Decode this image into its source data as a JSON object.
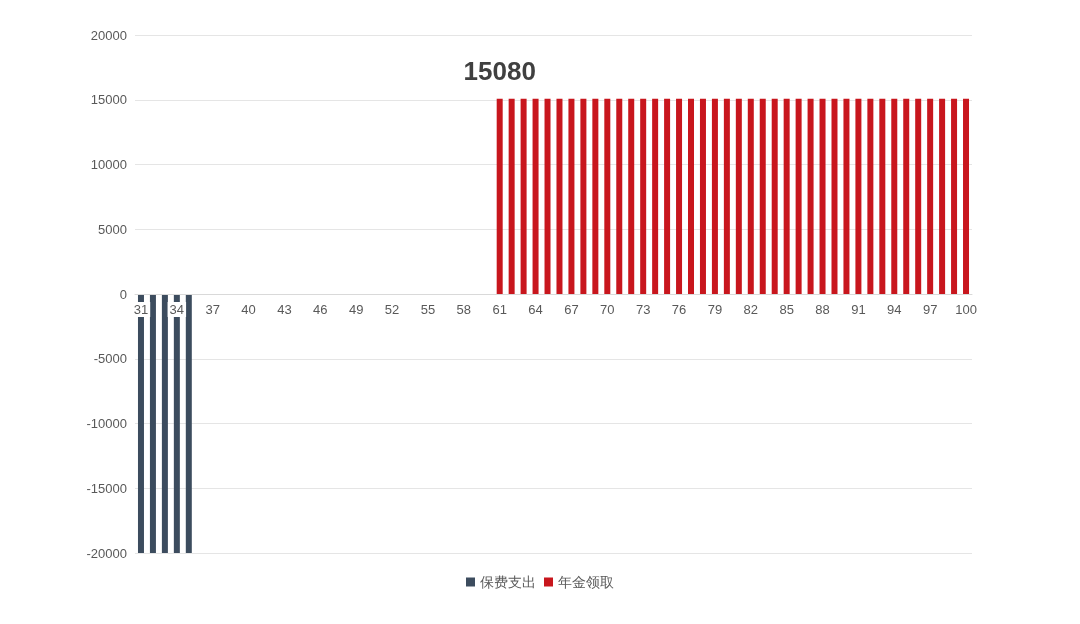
{
  "chart_data": {
    "type": "bar",
    "stacked": true,
    "categories": [
      "31",
      null,
      null,
      "34",
      null,
      null,
      "37",
      null,
      null,
      "40",
      null,
      null,
      "43",
      null,
      null,
      "46",
      null,
      null,
      "49",
      null,
      null,
      "52",
      null,
      null,
      "55",
      null,
      null,
      "58",
      null,
      null,
      "61",
      null,
      null,
      "64",
      null,
      null,
      "67",
      null,
      null,
      "70",
      null,
      null,
      "73",
      null,
      null,
      "76",
      null,
      null,
      "79",
      null,
      null,
      "82",
      null,
      null,
      "85",
      null,
      null,
      "88",
      null,
      null,
      "91",
      null,
      null,
      "94",
      null,
      null,
      "97",
      null,
      null,
      "100"
    ],
    "series": [
      {
        "name": "保费支出",
        "color": "#3c4c5e",
        "values": [
          -20000,
          -20000,
          -20000,
          -20000,
          -20000,
          null,
          null,
          null,
          null,
          null,
          null,
          null,
          null,
          null,
          null,
          null,
          null,
          null,
          null,
          null,
          null,
          null,
          null,
          null,
          null,
          null,
          null,
          null,
          null,
          null,
          null,
          null,
          null,
          null,
          null,
          null,
          null,
          null,
          null,
          null,
          null,
          null,
          null,
          null,
          null,
          null,
          null,
          null,
          null,
          null,
          null,
          null,
          null,
          null,
          null,
          null,
          null,
          null,
          null,
          null,
          null,
          null,
          null,
          null,
          null,
          null,
          null,
          null,
          null,
          null
        ]
      },
      {
        "name": "年金领取",
        "color": "#c8161d",
        "values": [
          null,
          null,
          null,
          null,
          null,
          null,
          null,
          null,
          null,
          null,
          null,
          null,
          null,
          null,
          null,
          null,
          null,
          null,
          null,
          null,
          null,
          null,
          null,
          null,
          null,
          null,
          null,
          null,
          null,
          null,
          15080,
          15080,
          15080,
          15080,
          15080,
          15080,
          15080,
          15080,
          15080,
          15080,
          15080,
          15080,
          15080,
          15080,
          15080,
          15080,
          15080,
          15080,
          15080,
          15080,
          15080,
          15080,
          15080,
          15080,
          15080,
          15080,
          15080,
          15080,
          15080,
          15080,
          15080,
          15080,
          15080,
          15080,
          15080,
          15080,
          15080,
          15080,
          15080,
          15080
        ]
      }
    ],
    "annotations": [
      {
        "text": "15080",
        "x": "61",
        "y": 15080
      }
    ],
    "ylim": [
      -20000,
      20000
    ],
    "yticks": [
      -20000,
      -15000,
      -10000,
      -5000,
      0,
      5000,
      10000,
      15000,
      20000
    ],
    "grid": "y",
    "legend": "bottom"
  }
}
